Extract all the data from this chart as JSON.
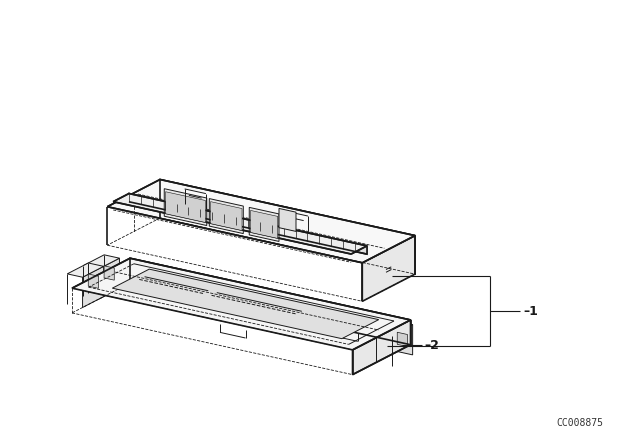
{
  "background_color": "#ffffff",
  "line_color": "#1a1a1a",
  "lw_main": 1.2,
  "lw_thin": 0.7,
  "lw_dash": 0.6,
  "watermark": "CC008875",
  "label_1": "–1",
  "label_2": "–2",
  "label_fontsize": 9,
  "watermark_fontsize": 7
}
